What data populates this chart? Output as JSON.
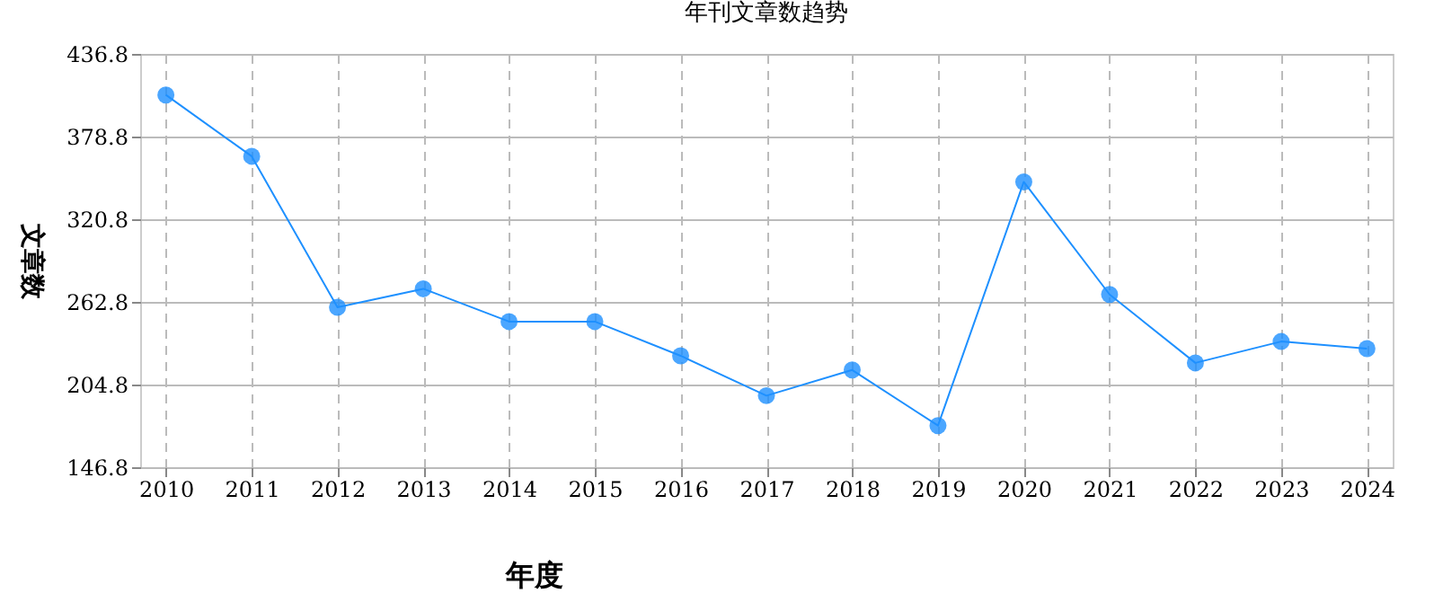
{
  "chart_data": {
    "type": "line",
    "title": "年刊文章数趋势",
    "xlabel": "年度",
    "ylabel": "文章数",
    "categories": [
      "2010",
      "2011",
      "2012",
      "2013",
      "2014",
      "2015",
      "2016",
      "2017",
      "2018",
      "2019",
      "2020",
      "2021",
      "2022",
      "2023",
      "2024"
    ],
    "series": [
      {
        "color": "#1e90ff",
        "values": [
          408,
          365,
          259,
          272,
          249,
          249,
          225,
          197,
          215,
          176,
          347,
          268,
          220,
          235,
          230
        ]
      }
    ],
    "ylim": [
      146.8,
      436.8
    ],
    "yticks": [
      {
        "value": 146.8,
        "label": "146.8"
      },
      {
        "value": 204.8,
        "label": "204.8"
      },
      {
        "value": 262.8,
        "label": "262.8"
      },
      {
        "value": 320.8,
        "label": "320.8"
      },
      {
        "value": 378.8,
        "label": "378.8"
      },
      {
        "value": 436.8,
        "label": "436.8"
      }
    ],
    "grid": true,
    "marker": "circle",
    "line_style": "solid",
    "legend": false
  }
}
